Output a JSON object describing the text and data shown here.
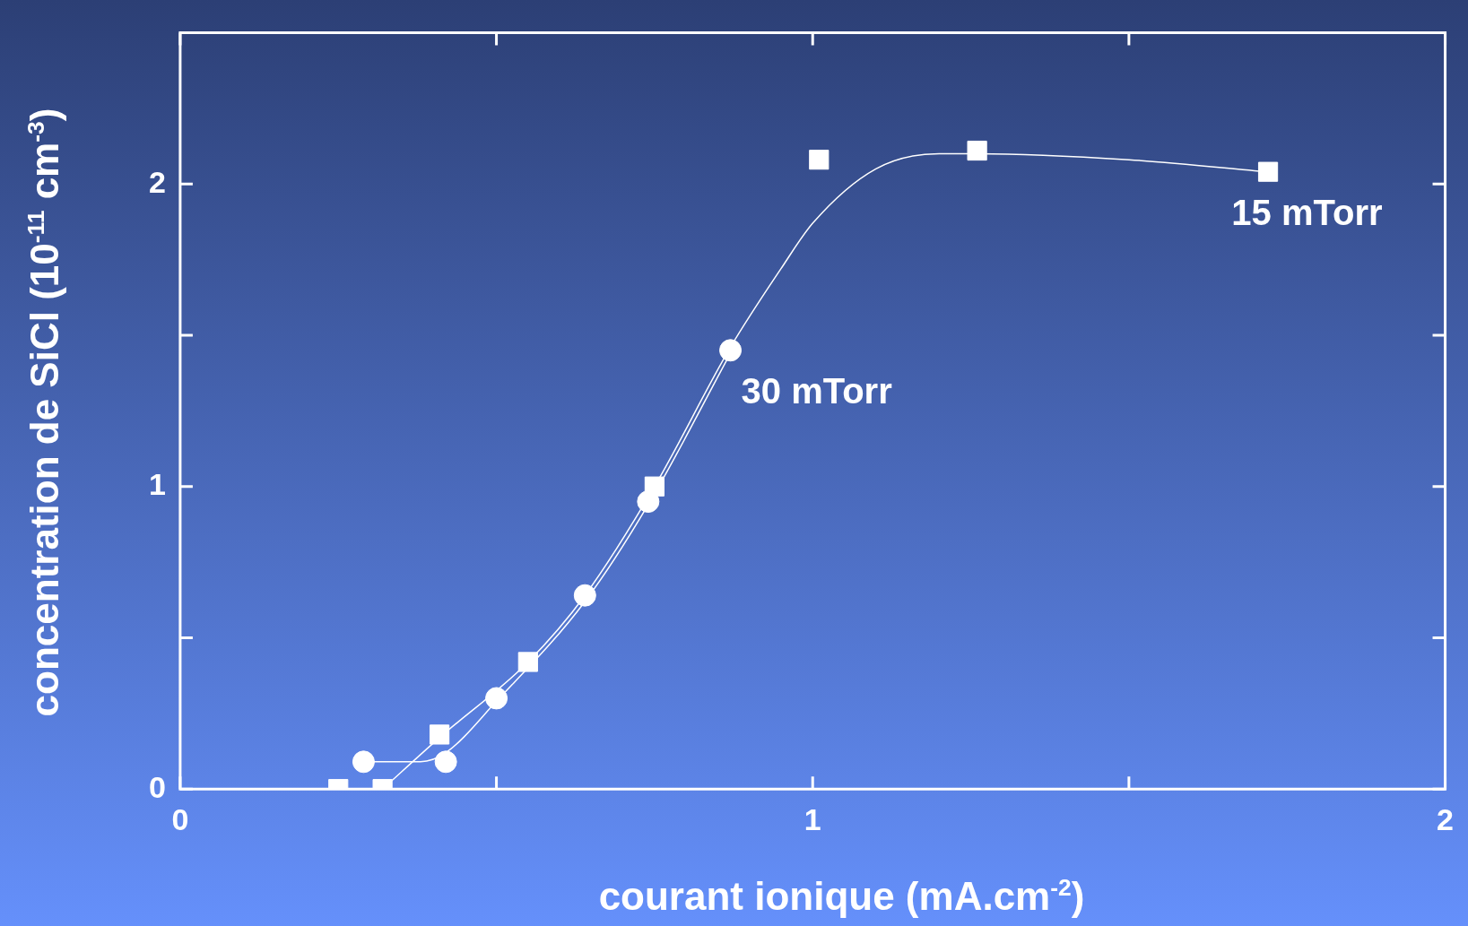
{
  "chart_data": {
    "type": "scatter",
    "xlabel": "courant ionique (mA.cm$^{-2}$)",
    "ylabel": "concentration de SiCl (10$^{-11}$ cm$^{-3}$)",
    "xlim": [
      0,
      2
    ],
    "xticks": [
      0,
      {
        "value": 0.5,
        "label": null
      },
      1,
      {
        "value": 1.5,
        "label": null
      },
      2
    ],
    "ylim": [
      0,
      2.5
    ],
    "yticks": [
      0,
      {
        "value": 0.5,
        "label": null
      },
      1,
      {
        "value": 1.5,
        "label": null
      },
      2
    ],
    "grid": false,
    "series": [
      {
        "name": "15 mTorr",
        "type": "scatter",
        "marker": "square",
        "color": "#ffffff",
        "x": [
          0.25,
          0.32,
          0.41,
          0.55,
          0.75,
          1.01,
          1.26,
          1.72
        ],
        "values": [
          0,
          0,
          0.18,
          0.42,
          1.0,
          2.08,
          2.11,
          2.04
        ]
      },
      {
        "name": "30 mTorr",
        "type": "scatter",
        "marker": "circle",
        "color": "#ffffff",
        "x": [
          0.29,
          0.42,
          0.5,
          0.64,
          0.74,
          0.87
        ],
        "values": [
          0.09,
          0.09,
          0.3,
          0.64,
          0.95,
          1.45
        ]
      },
      {
        "type": "line",
        "marker": "none",
        "color": "#ffffff",
        "x": [
          0.32,
          0.41,
          0.55,
          0.64,
          0.75,
          0.87,
          0.95,
          1.0,
          1.1,
          1.2,
          1.26,
          1.5,
          1.72
        ],
        "values": [
          0,
          0.17,
          0.42,
          0.64,
          1.0,
          1.46,
          1.72,
          1.87,
          2.05,
          2.1,
          2.1,
          2.08,
          2.04
        ]
      },
      {
        "type": "line",
        "marker": "none",
        "color": "#ffffff",
        "x": [
          0.29,
          0.38,
          0.42,
          0.5,
          0.64,
          0.74,
          0.87
        ],
        "values": [
          0.09,
          0.09,
          0.12,
          0.29,
          0.62,
          0.94,
          1.44
        ]
      }
    ]
  }
}
